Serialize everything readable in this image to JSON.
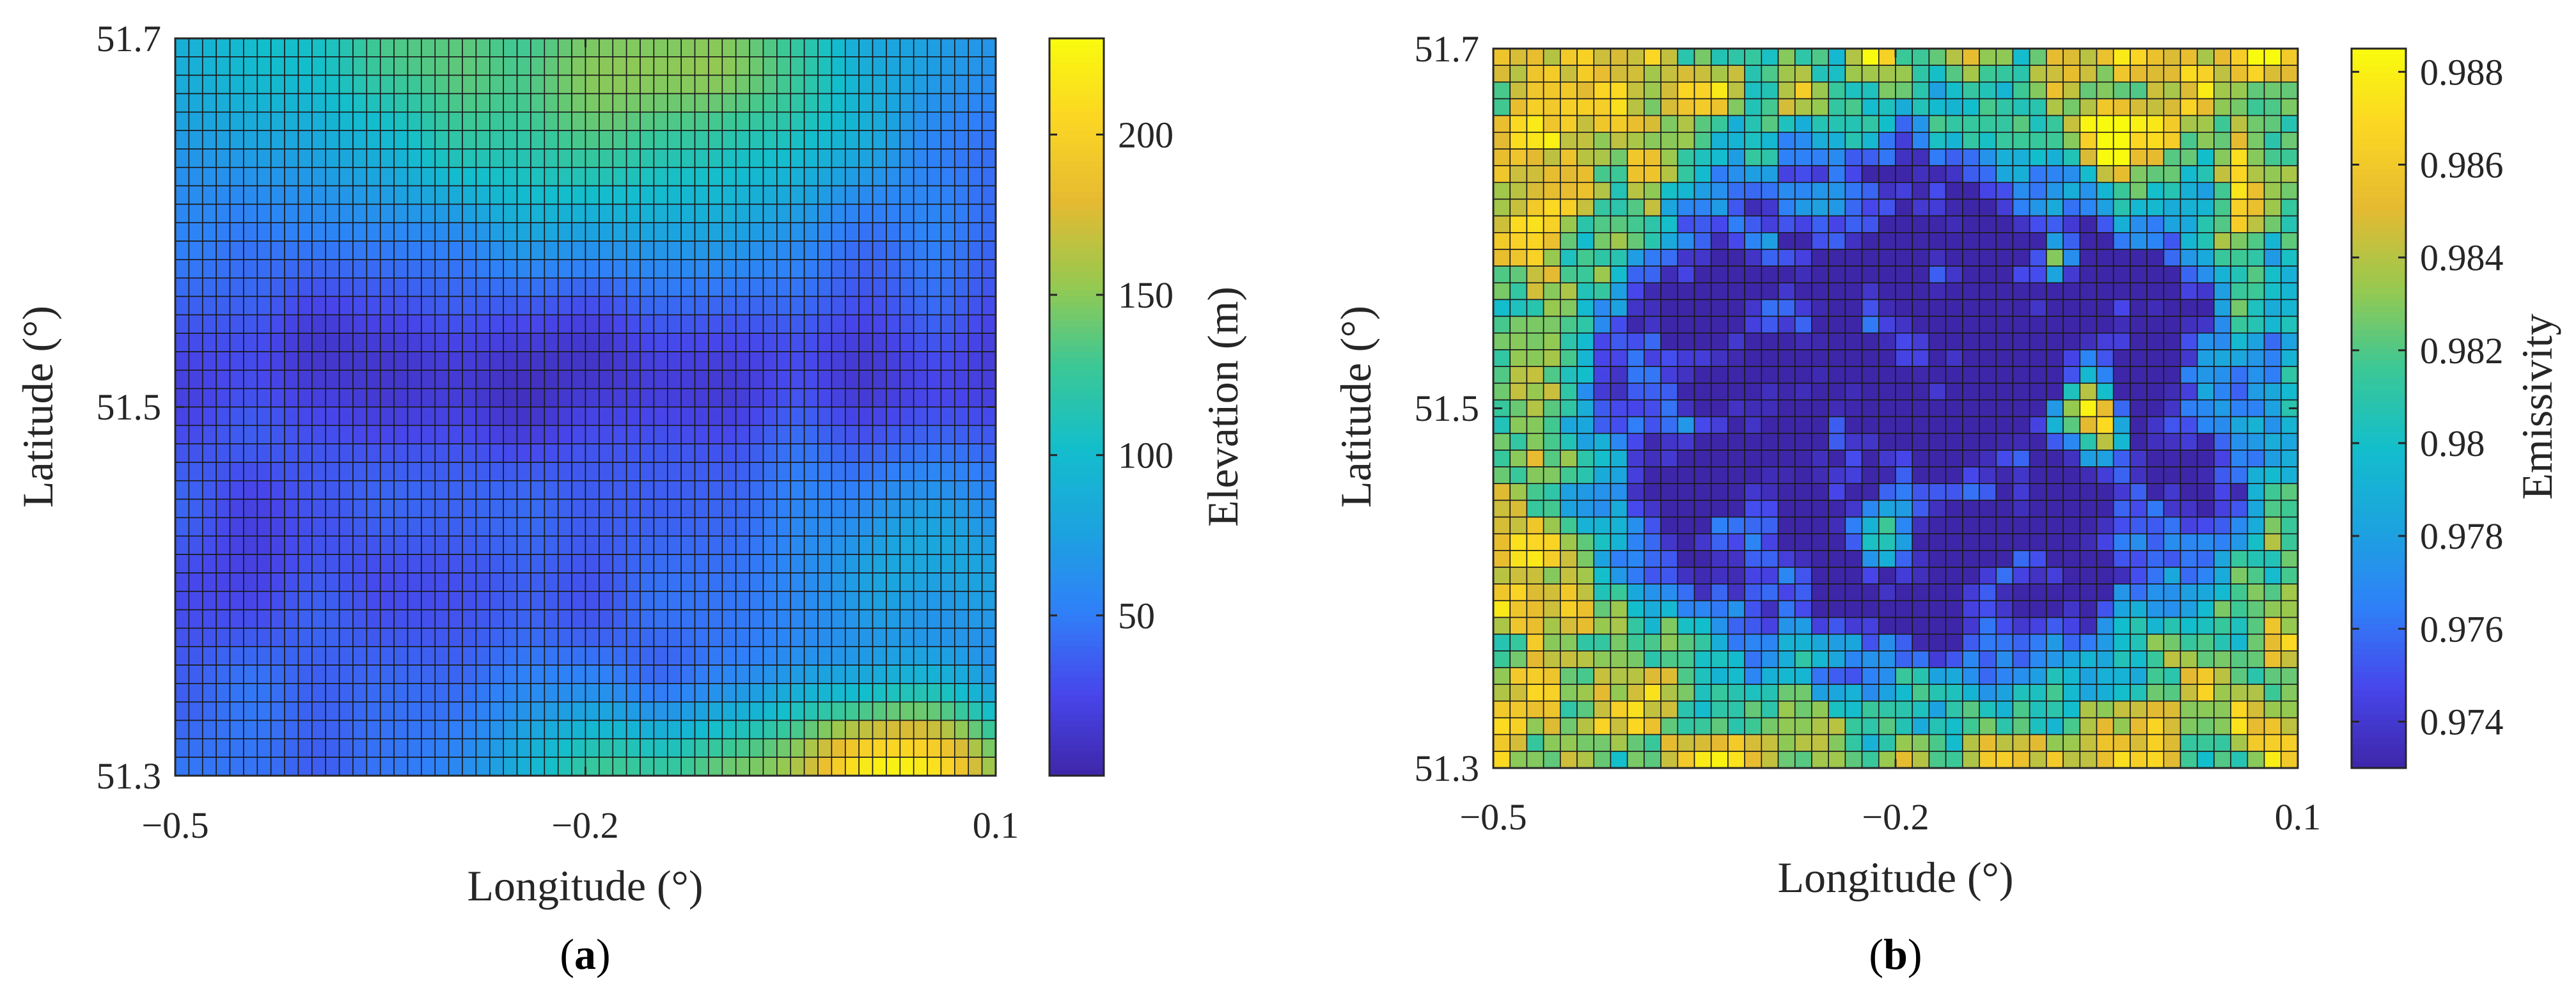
{
  "colors": {
    "parula": [
      "#3e26a8",
      "#4746eb",
      "#2f80f8",
      "#1ca3df",
      "#13becc",
      "#3bc896",
      "#97c94f",
      "#e5ba31",
      "#fbd524",
      "#f9fb0e"
    ]
  },
  "chart_data": [
    {
      "type": "heatmap",
      "panel_label": "a",
      "xlabel": "Longitude (°)",
      "ylabel": "Latitude (°)",
      "xlim": [
        -0.5,
        0.1
      ],
      "ylim": [
        51.3,
        51.7
      ],
      "xticks": [
        {
          "value": -0.5,
          "label": "−0.5"
        },
        {
          "value": -0.2,
          "label": "−0.2"
        },
        {
          "value": 0.1,
          "label": "0.1"
        }
      ],
      "yticks": [
        {
          "value": 51.3,
          "label": "51.3"
        },
        {
          "value": 51.5,
          "label": "51.5"
        },
        {
          "value": 51.7,
          "label": "51.7"
        }
      ],
      "grid_cols": 60,
      "grid_rows": 40,
      "colorbar": {
        "label": "Elevation (m)",
        "range": [
          0,
          230
        ],
        "ticks": [
          {
            "value": 50,
            "label": "50"
          },
          {
            "value": 100,
            "label": "100"
          },
          {
            "value": 150,
            "label": "150"
          },
          {
            "value": 200,
            "label": "200"
          }
        ]
      },
      "field": {
        "kind": "elevation",
        "description": "low valley (~10-30 m) running west-east through the middle; green higher ground (~100-130 m) in north; yellow/orange hills (~170-215 m) in south-east corner",
        "base": 40,
        "features": [
          {
            "lon": -0.27,
            "lat": 51.7,
            "amp": 85,
            "lon_w": 0.3,
            "lat_w": 0.07
          },
          {
            "lon": -0.2,
            "lat": 51.63,
            "amp": 45,
            "lon_w": 0.18,
            "lat_w": 0.05
          },
          {
            "lon": -0.1,
            "lat": 51.68,
            "amp": 35,
            "lon_w": 0.12,
            "lat_w": 0.05
          },
          {
            "lon": -0.2,
            "lat": 51.52,
            "amp": -25,
            "lon_w": 0.5,
            "lat_w": 0.04
          },
          {
            "lon": -0.4,
            "lat": 51.42,
            "amp": -15,
            "lon_w": 0.12,
            "lat_w": 0.05
          },
          {
            "lon": 0.03,
            "lat": 51.3,
            "amp": 175,
            "lon_w": 0.11,
            "lat_w": 0.045
          },
          {
            "lon": -0.17,
            "lat": 51.3,
            "amp": 85,
            "lon_w": 0.1,
            "lat_w": 0.035
          },
          {
            "lon": 0.05,
            "lat": 51.42,
            "amp": 45,
            "lon_w": 0.08,
            "lat_w": 0.05
          }
        ]
      }
    },
    {
      "type": "heatmap",
      "panel_label": "b",
      "xlabel": "Longitude (°)",
      "ylabel": "Latitude (°)",
      "xlim": [
        -0.5,
        0.1
      ],
      "ylim": [
        51.3,
        51.7
      ],
      "xticks": [
        {
          "value": -0.5,
          "label": "−0.5"
        },
        {
          "value": -0.2,
          "label": "−0.2"
        },
        {
          "value": 0.1,
          "label": "0.1"
        }
      ],
      "yticks": [
        {
          "value": 51.3,
          "label": "51.3"
        },
        {
          "value": 51.5,
          "label": "51.5"
        },
        {
          "value": 51.7,
          "label": "51.7"
        }
      ],
      "grid_cols": 48,
      "grid_rows": 43,
      "colorbar": {
        "label": "Emissivity",
        "range": [
          0.973,
          0.9885
        ],
        "ticks": [
          {
            "value": 0.974,
            "label": "0.974"
          },
          {
            "value": 0.976,
            "label": "0.976"
          },
          {
            "value": 0.978,
            "label": "0.978"
          },
          {
            "value": 0.98,
            "label": "0.98"
          },
          {
            "value": 0.982,
            "label": "0.982"
          },
          {
            "value": 0.984,
            "label": "0.984"
          },
          {
            "value": 0.986,
            "label": "0.986"
          },
          {
            "value": 0.988,
            "label": "0.988"
          }
        ]
      },
      "field": {
        "kind": "emissivity",
        "description": "dark blue urban core (~0.973) in centre; green/yellow (~0.982-0.987) vegetated edges; yellow hot spots near (-0.06,51.5), (-0.04,51.65), (-0.45,51.42), (-0.4,51.38)",
        "base": 0.9845,
        "urban_center": {
          "lon": -0.18,
          "lat": 51.5,
          "lon_w": 0.27,
          "lat_w": 0.16,
          "depth": 0.0125
        },
        "spots": [
          {
            "lon": -0.06,
            "lat": 51.5,
            "amp": 0.014,
            "r": 0.02
          },
          {
            "lon": -0.04,
            "lat": 51.49,
            "amp": 0.012,
            "r": 0.015
          },
          {
            "lon": -0.04,
            "lat": 51.65,
            "amp": 0.01,
            "r": 0.025
          },
          {
            "lon": -0.08,
            "lat": 51.58,
            "amp": 0.011,
            "r": 0.015
          },
          {
            "lon": -0.21,
            "lat": 51.43,
            "amp": 0.009,
            "r": 0.025
          },
          {
            "lon": -0.37,
            "lat": 51.38,
            "amp": 0.004,
            "r": 0.02
          },
          {
            "lon": -0.47,
            "lat": 51.42,
            "amp": 0.004,
            "r": 0.02
          }
        ]
      }
    }
  ]
}
